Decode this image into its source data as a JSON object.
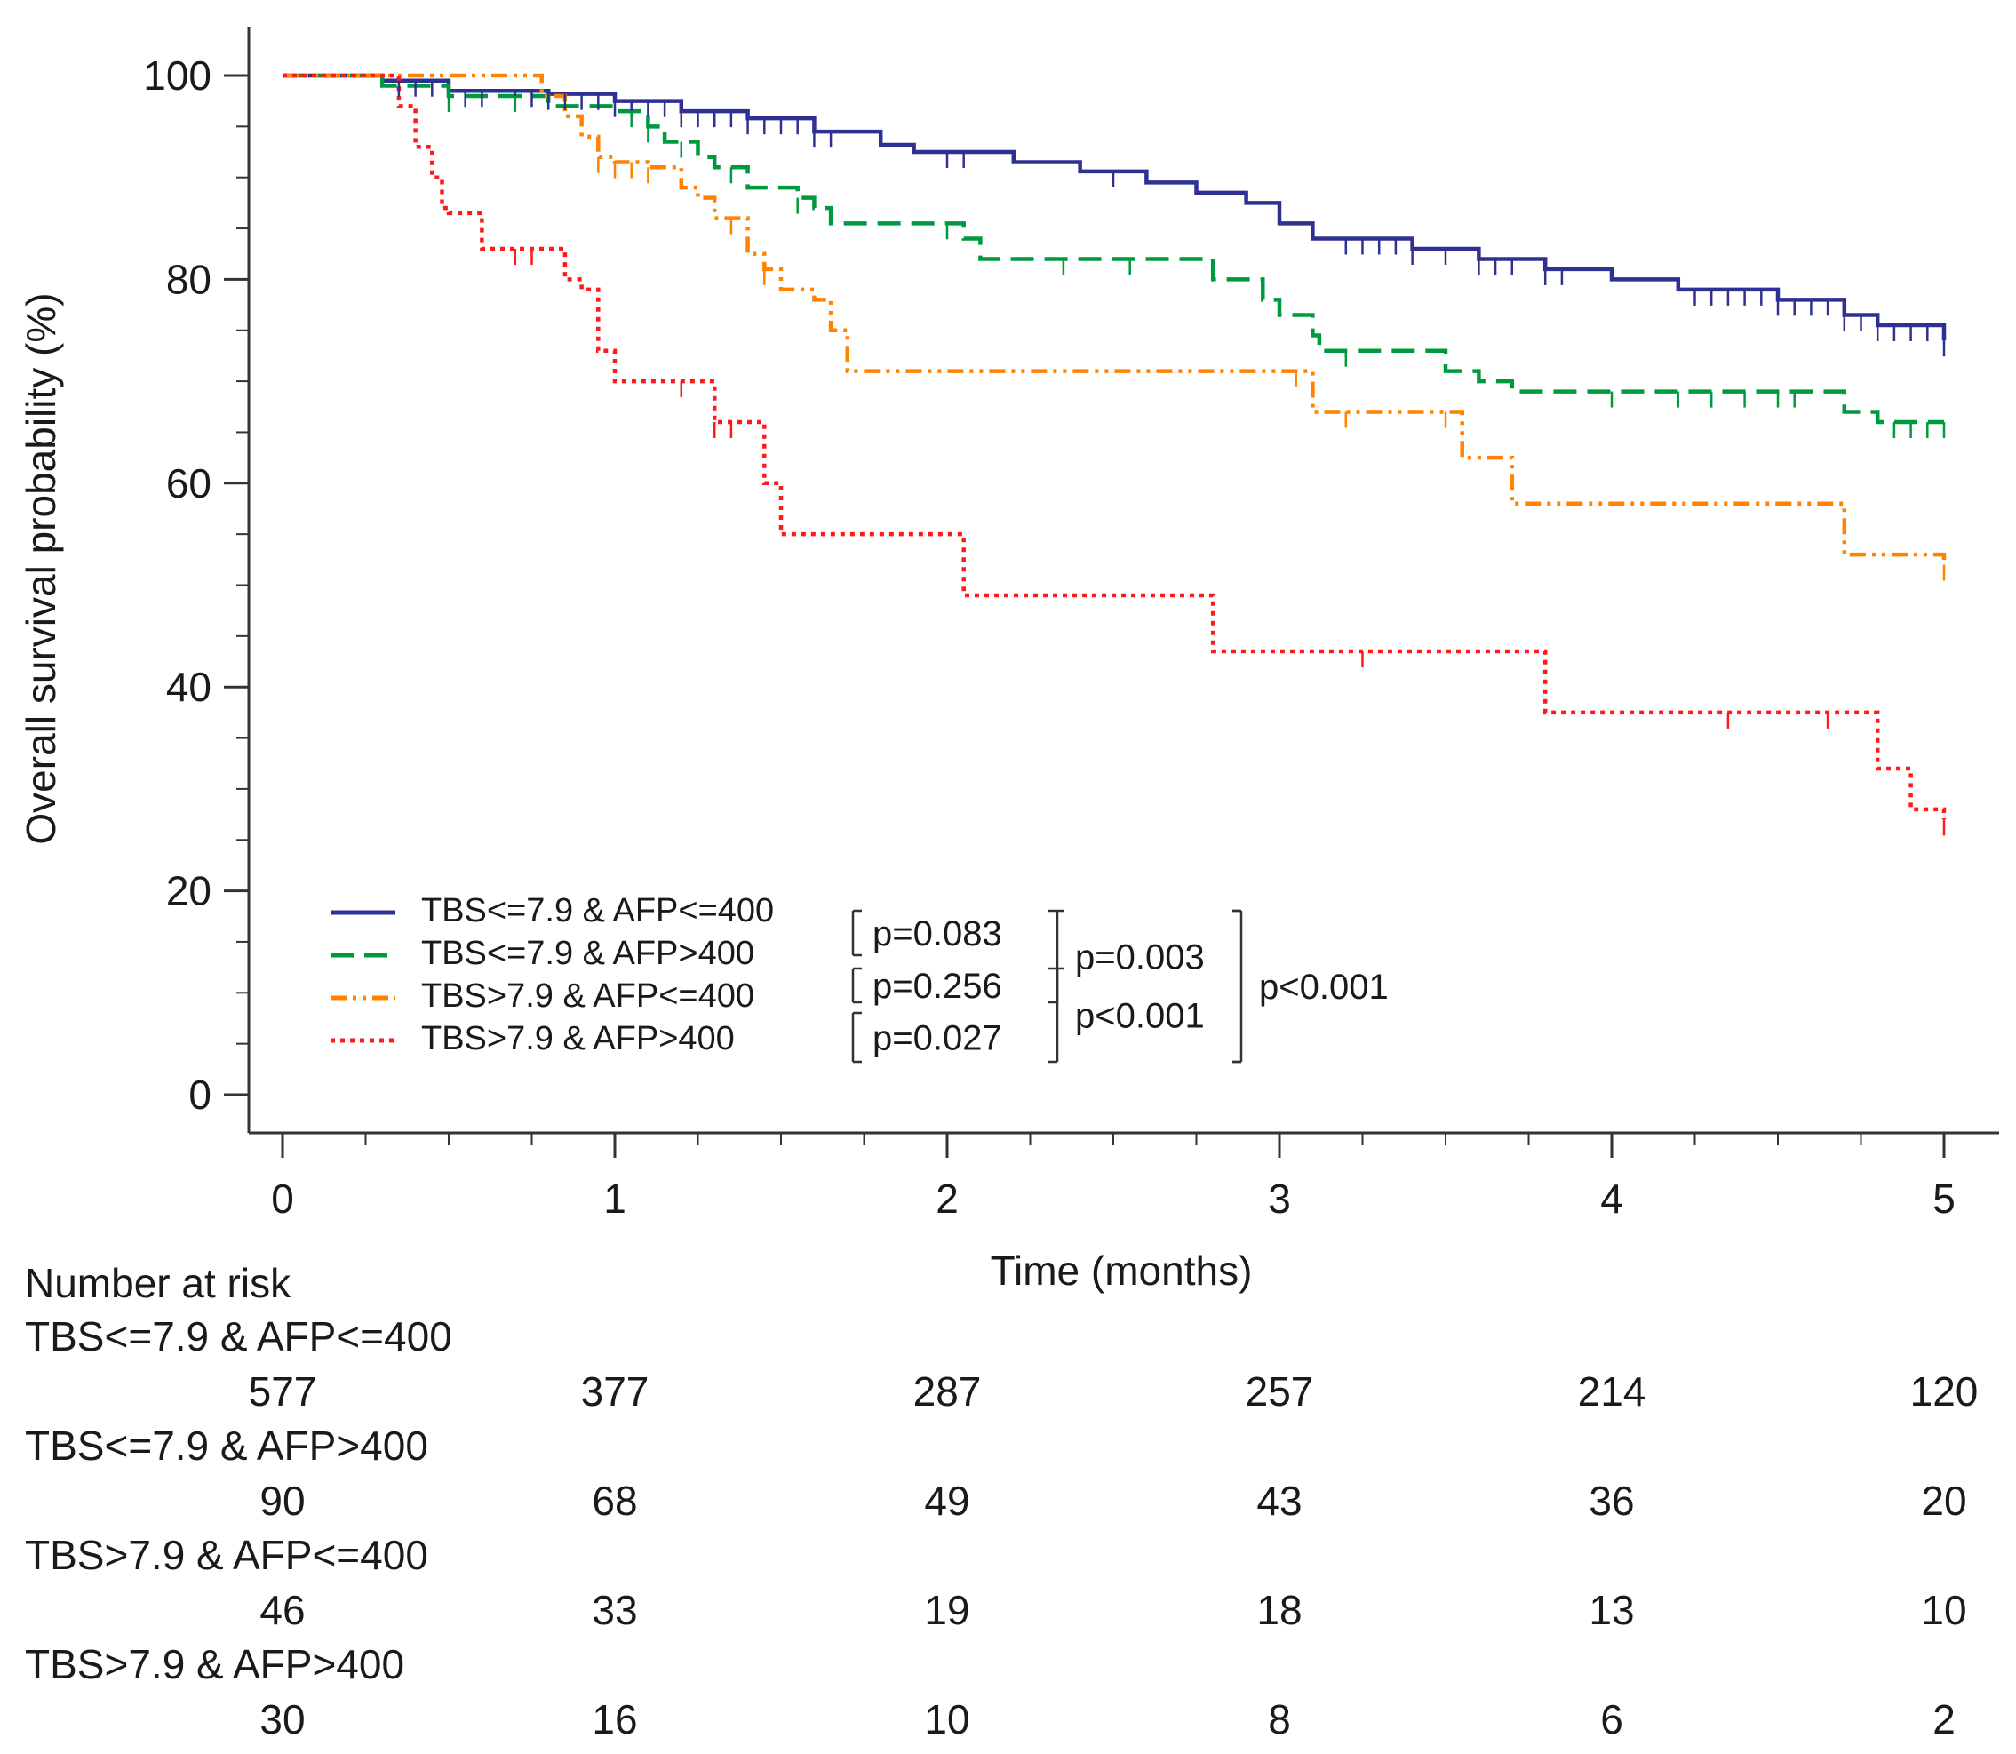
{
  "chart_data": {
    "type": "line",
    "subtype": "kaplan-meier",
    "xlabel": "Time (months)",
    "ylabel": "Overall survival probability (%)",
    "xlim": [
      0,
      5
    ],
    "ylim": [
      0,
      100
    ],
    "x_ticks": [
      "0",
      "1",
      "2",
      "3",
      "4",
      "5"
    ],
    "y_ticks": [
      "0",
      "20",
      "40",
      "60",
      "80",
      "100"
    ],
    "grid": false,
    "legend_position": "bottom-left",
    "series": [
      {
        "name": "TBS<=7.9 & AFP<=400",
        "color": "#2e3192",
        "dash": "solid",
        "steps": [
          [
            0,
            100
          ],
          [
            0.3,
            99.5
          ],
          [
            0.5,
            98.5
          ],
          [
            0.8,
            98.2
          ],
          [
            1.0,
            97.5
          ],
          [
            1.2,
            96.5
          ],
          [
            1.4,
            95.8
          ],
          [
            1.6,
            94.5
          ],
          [
            1.8,
            93.2
          ],
          [
            1.9,
            92.5
          ],
          [
            2.2,
            91.5
          ],
          [
            2.4,
            90.6
          ],
          [
            2.6,
            89.5
          ],
          [
            2.75,
            88.5
          ],
          [
            2.9,
            87.5
          ],
          [
            3.0,
            85.5
          ],
          [
            3.1,
            84
          ],
          [
            3.4,
            83
          ],
          [
            3.6,
            82
          ],
          [
            3.8,
            81
          ],
          [
            4.0,
            80
          ],
          [
            4.2,
            79
          ],
          [
            4.5,
            78
          ],
          [
            4.7,
            76.5
          ],
          [
            4.8,
            75.5
          ],
          [
            5.0,
            74
          ]
        ]
      },
      {
        "name": "TBS<=7.9 & AFP>400",
        "color": "#009a3e",
        "dash": "dashed",
        "steps": [
          [
            0,
            100
          ],
          [
            0.3,
            99
          ],
          [
            0.5,
            98
          ],
          [
            0.8,
            97
          ],
          [
            1.0,
            96.5
          ],
          [
            1.1,
            95
          ],
          [
            1.15,
            93.5
          ],
          [
            1.25,
            92
          ],
          [
            1.3,
            91
          ],
          [
            1.4,
            89
          ],
          [
            1.55,
            88
          ],
          [
            1.6,
            87
          ],
          [
            1.65,
            85.5
          ],
          [
            2.05,
            84
          ],
          [
            2.1,
            82
          ],
          [
            2.8,
            80
          ],
          [
            2.95,
            78
          ],
          [
            3.0,
            76.5
          ],
          [
            3.1,
            74.5
          ],
          [
            3.12,
            73
          ],
          [
            3.5,
            71
          ],
          [
            3.6,
            70
          ],
          [
            3.7,
            69
          ],
          [
            4.7,
            67
          ],
          [
            4.8,
            66
          ],
          [
            5.0,
            66
          ]
        ]
      },
      {
        "name": "TBS>7.9 & AFP<=400",
        "color": "#ff8200",
        "dash": "dash-dot-dot",
        "steps": [
          [
            0,
            100
          ],
          [
            0.78,
            98
          ],
          [
            0.85,
            96
          ],
          [
            0.9,
            94
          ],
          [
            0.95,
            92
          ],
          [
            1.0,
            91.5
          ],
          [
            1.1,
            91
          ],
          [
            1.2,
            89
          ],
          [
            1.25,
            88
          ],
          [
            1.3,
            86
          ],
          [
            1.4,
            82.5
          ],
          [
            1.45,
            81
          ],
          [
            1.5,
            79
          ],
          [
            1.6,
            78
          ],
          [
            1.65,
            75
          ],
          [
            1.7,
            71
          ],
          [
            3.1,
            67
          ],
          [
            3.55,
            62.5
          ],
          [
            3.7,
            58
          ],
          [
            4.7,
            53
          ],
          [
            5.0,
            52
          ]
        ]
      },
      {
        "name": "TBS>7.9 & AFP>400",
        "color": "#ff1a1a",
        "dash": "dotted",
        "steps": [
          [
            0,
            100
          ],
          [
            0.35,
            97
          ],
          [
            0.4,
            93
          ],
          [
            0.45,
            90
          ],
          [
            0.48,
            87
          ],
          [
            0.5,
            86.5
          ],
          [
            0.6,
            83
          ],
          [
            0.85,
            80
          ],
          [
            0.9,
            79
          ],
          [
            0.95,
            73
          ],
          [
            1.0,
            70
          ],
          [
            1.3,
            66
          ],
          [
            1.45,
            60
          ],
          [
            1.5,
            55
          ],
          [
            2.05,
            49
          ],
          [
            2.8,
            43.5
          ],
          [
            3.8,
            37.5
          ],
          [
            4.8,
            32
          ],
          [
            4.9,
            28
          ],
          [
            5.0,
            27
          ]
        ]
      }
    ],
    "censor_marks": [
      {
        "series": 0,
        "x": [
          0.35,
          0.4,
          0.45,
          0.55,
          0.6,
          0.7,
          0.75,
          0.8,
          0.85,
          0.9,
          0.95,
          1.0,
          1.05,
          1.1,
          1.15,
          1.2,
          1.25,
          1.3,
          1.35,
          1.4,
          1.45,
          1.5,
          1.55,
          1.6,
          1.65,
          2.0,
          2.05,
          2.5,
          3.2,
          3.25,
          3.3,
          3.35,
          3.4,
          3.5,
          3.6,
          3.65,
          3.7,
          3.8,
          3.85,
          4.25,
          4.3,
          4.35,
          4.4,
          4.45,
          4.5,
          4.55,
          4.6,
          4.65,
          4.7,
          4.75,
          4.8,
          4.85,
          4.9,
          4.95,
          5.0
        ]
      },
      {
        "series": 1,
        "x": [
          0.5,
          0.7,
          1.05,
          1.1,
          1.2,
          1.35,
          1.55,
          2.0,
          2.35,
          2.55,
          3.2,
          4.0,
          4.2,
          4.3,
          4.4,
          4.5,
          4.55,
          4.85,
          4.9,
          4.95,
          5.0
        ]
      },
      {
        "series": 2,
        "x": [
          0.95,
          1.0,
          1.05,
          1.1,
          1.35,
          1.45,
          3.05,
          3.2,
          3.5,
          5.0
        ]
      },
      {
        "series": 3,
        "x": [
          0.7,
          0.75,
          1.2,
          1.3,
          1.35,
          3.25,
          4.35,
          4.65,
          5.0
        ]
      }
    ],
    "pvalues": [
      {
        "label": "p=0.083",
        "level": 1,
        "pair": [
          0,
          1
        ]
      },
      {
        "label": "p=0.256",
        "level": 1,
        "pair": [
          1,
          2
        ]
      },
      {
        "label": "p=0.027",
        "level": 1,
        "pair": [
          2,
          3
        ]
      },
      {
        "label": "p=0.003",
        "level": 2,
        "pair": [
          0,
          2
        ]
      },
      {
        "label": "p<0.001",
        "level": 2,
        "pair": [
          1,
          3
        ]
      },
      {
        "label": "p<0.001",
        "level": 3,
        "pair": [
          0,
          3
        ]
      }
    ],
    "risk_table": {
      "title": "Number at risk",
      "times": [
        0,
        1,
        2,
        3,
        4,
        5
      ],
      "rows": [
        {
          "label": "TBS<=7.9 & AFP<=400",
          "values": [
            "577",
            "377",
            "287",
            "257",
            "214",
            "120"
          ]
        },
        {
          "label": "TBS<=7.9 & AFP>400",
          "values": [
            "90",
            "68",
            "49",
            "43",
            "36",
            "20"
          ]
        },
        {
          "label": "TBS>7.9 & AFP<=400",
          "values": [
            "46",
            "33",
            "19",
            "18",
            "13",
            "10"
          ]
        },
        {
          "label": "TBS>7.9 & AFP>400",
          "values": [
            "30",
            "16",
            "10",
            "8",
            "6",
            "2"
          ]
        }
      ]
    }
  }
}
